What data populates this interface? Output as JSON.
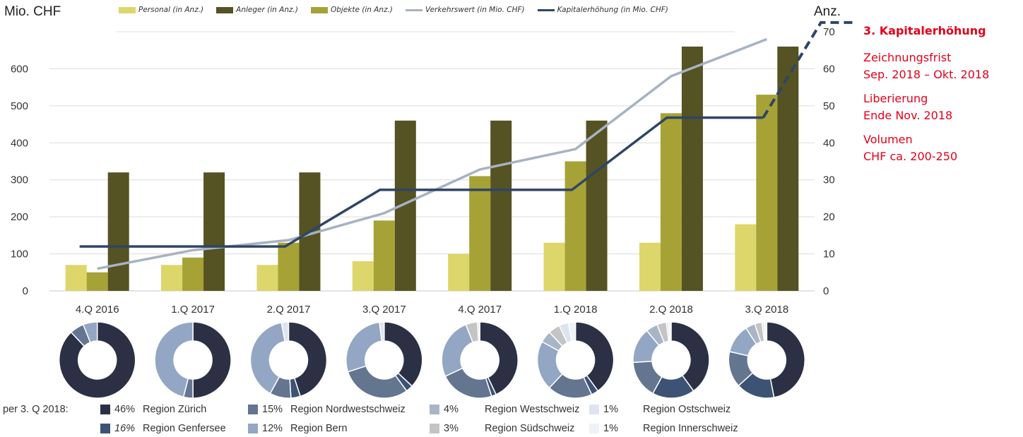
{
  "chart_data": {
    "type": "bar",
    "categories": [
      "4.Q 2016",
      "1.Q 2017",
      "2.Q 2017",
      "3.Q 2017",
      "4.Q 2017",
      "1.Q 2018",
      "2.Q 2018",
      "3.Q 2018"
    ],
    "left_axis": {
      "label": "Mio. CHF",
      "ylim": [
        0,
        700
      ],
      "ticks": [
        "0",
        "100",
        "200",
        "300",
        "400",
        "500",
        "600",
        "700"
      ]
    },
    "right_axis": {
      "label": "Anz.",
      "ylim": [
        0,
        70
      ],
      "ticks": [
        "0",
        "10",
        "20",
        "30",
        "40",
        "50",
        "60",
        "70"
      ]
    },
    "grid": true,
    "series": [
      {
        "name": "Personal (in Anz.)",
        "kind": "bar",
        "axis": "right",
        "color": "#ddd66a",
        "values": [
          7,
          7,
          7,
          8,
          10,
          13,
          13,
          18
        ]
      },
      {
        "name": "Objekte (in Anz.)",
        "kind": "bar",
        "axis": "right",
        "color": "#a6a236",
        "values": [
          5,
          9,
          13,
          19,
          31,
          35,
          48,
          53
        ]
      },
      {
        "name": "Anleger (in Anz.)",
        "kind": "bar",
        "axis": "right",
        "color": "#555223",
        "values": [
          32,
          32,
          32,
          46,
          46,
          46,
          66,
          66
        ]
      },
      {
        "name": "Verkehrswert (in Mio. CHF)",
        "kind": "line",
        "axis": "left",
        "color": "#a7b2c2",
        "values": [
          60,
          110,
          137,
          210,
          328,
          383,
          580,
          680
        ]
      },
      {
        "name": "Kapitalerhöhung (in Mio. CHF)",
        "kind": "line",
        "axis": "left",
        "color": "#2f4566",
        "values": [
          120,
          120,
          120,
          273,
          273,
          273,
          468,
          468
        ],
        "projection_end": 725
      }
    ],
    "legend_order": [
      {
        "name": "Personal (in Anz.)",
        "kind": "bar",
        "color": "#ddd66a"
      },
      {
        "name": "Anleger (in Anz.)",
        "kind": "bar",
        "color": "#555223"
      },
      {
        "name": "Objekte (in Anz.)",
        "kind": "bar",
        "color": "#a6a236"
      },
      {
        "name": "Verkehrswert (in Mio. CHF)",
        "kind": "line",
        "color": "#a7b2c2"
      },
      {
        "name": "Kapitalerhöhung (in Mio. CHF)",
        "kind": "line",
        "color": "#2f4566"
      }
    ],
    "donuts": [
      {
        "category": "4.Q 2016",
        "slices": [
          {
            "color": "#2b3045",
            "value": 88
          },
          {
            "color": "#647590",
            "value": 6
          },
          {
            "color": "#93a7c4",
            "value": 6
          }
        ]
      },
      {
        "category": "1.Q 2017",
        "slices": [
          {
            "color": "#2b3045",
            "value": 50
          },
          {
            "color": "#647590",
            "value": 4
          },
          {
            "color": "#93a7c4",
            "value": 46
          }
        ]
      },
      {
        "category": "2.Q 2017",
        "slices": [
          {
            "color": "#2b3045",
            "value": 45
          },
          {
            "color": "#3c5374",
            "value": 4
          },
          {
            "color": "#647590",
            "value": 9
          },
          {
            "color": "#93a7c4",
            "value": 39
          },
          {
            "color": "#dde4ee",
            "value": 3
          }
        ]
      },
      {
        "category": "3.Q 2017",
        "slices": [
          {
            "color": "#2b3045",
            "value": 37
          },
          {
            "color": "#3c5374",
            "value": 3
          },
          {
            "color": "#647590",
            "value": 30
          },
          {
            "color": "#93a7c4",
            "value": 28
          },
          {
            "color": "#dde4ee",
            "value": 2
          }
        ]
      },
      {
        "category": "4.Q 2017",
        "slices": [
          {
            "color": "#2b3045",
            "value": 43
          },
          {
            "color": "#3c5374",
            "value": 2
          },
          {
            "color": "#647590",
            "value": 23
          },
          {
            "color": "#93a7c4",
            "value": 26
          },
          {
            "color": "#c4c4c4",
            "value": 5
          },
          {
            "color": "#dde4ee",
            "value": 1
          }
        ]
      },
      {
        "category": "1.Q 2018",
        "slices": [
          {
            "color": "#2b3045",
            "value": 40
          },
          {
            "color": "#3c5374",
            "value": 3
          },
          {
            "color": "#647590",
            "value": 19
          },
          {
            "color": "#93a7c4",
            "value": 21
          },
          {
            "color": "#a9b5c7",
            "value": 5
          },
          {
            "color": "#c4c4c4",
            "value": 5
          },
          {
            "color": "#dde4ee",
            "value": 4
          },
          {
            "color": "#eef1f5",
            "value": 3
          }
        ]
      },
      {
        "category": "2.Q 2018",
        "slices": [
          {
            "color": "#2b3045",
            "value": 40
          },
          {
            "color": "#3c5374",
            "value": 18
          },
          {
            "color": "#647590",
            "value": 16
          },
          {
            "color": "#93a7c4",
            "value": 15
          },
          {
            "color": "#a9b5c7",
            "value": 5
          },
          {
            "color": "#c4c4c4",
            "value": 4
          },
          {
            "color": "#dde4ee",
            "value": 1
          },
          {
            "color": "#eef1f5",
            "value": 1
          }
        ]
      },
      {
        "category": "3.Q 2018",
        "slices": [
          {
            "color": "#2b3045",
            "value": 46
          },
          {
            "color": "#3c5374",
            "value": 16
          },
          {
            "color": "#647590",
            "value": 15
          },
          {
            "color": "#93a7c4",
            "value": 12
          },
          {
            "color": "#a9b5c7",
            "value": 4
          },
          {
            "color": "#c4c4c4",
            "value": 3
          },
          {
            "color": "#dde4ee",
            "value": 1
          },
          {
            "color": "#eef1f5",
            "value": 1
          }
        ]
      }
    ]
  },
  "side_panel": {
    "title": "3. Kapitalerhöhung",
    "blocks": [
      {
        "line1": "Zeichnungsfrist",
        "line2": "Sep. 2018 – Okt. 2018"
      },
      {
        "line1": "Liberierung",
        "line2": "Ende Nov. 2018"
      },
      {
        "line1": "Volumen",
        "line2": "CHF ca. 200-250"
      }
    ]
  },
  "region_legend": {
    "label": "per 3. Q 2018:",
    "items": [
      {
        "pct": "46%",
        "name": "Region Zürich",
        "color": "#2b3045"
      },
      {
        "pct": "15%",
        "name": "Region Nordwestschweiz",
        "color": "#647590"
      },
      {
        "pct": "4%",
        "name": "Region Westschweiz",
        "color": "#a9b5c7"
      },
      {
        "pct": "1%",
        "name": "Region Ostschweiz",
        "color": "#dde4ee"
      },
      {
        "pct": "16%",
        "name": "Region Genfersee",
        "color": "#3c5374"
      },
      {
        "pct": "12%",
        "name": "Region Bern",
        "color": "#93a7c4"
      },
      {
        "pct": "3%",
        "name": "Region Südschweiz",
        "color": "#c4c4c4"
      },
      {
        "pct": "1%",
        "name": "Region Innerschweiz",
        "color": "#eef1f5"
      }
    ]
  }
}
